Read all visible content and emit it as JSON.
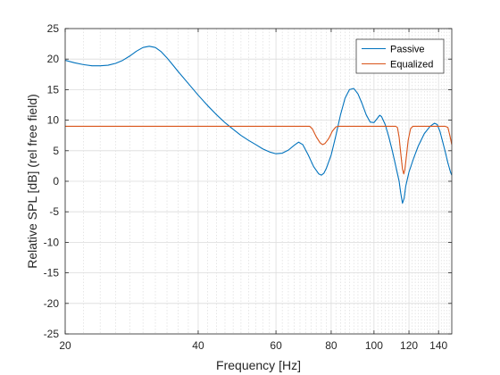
{
  "chart_data": {
    "type": "line",
    "xlabel": "Frequency [Hz]",
    "ylabel": "Relative SPL [dB] (rel free field)",
    "xscale": "log",
    "xlim": [
      20,
      150
    ],
    "ylim": [
      -25,
      25
    ],
    "xticks": [
      20,
      40,
      60,
      80,
      100,
      120,
      140
    ],
    "xtick_labels": [
      "20",
      "40",
      "60",
      "80",
      "100",
      "120",
      "140"
    ],
    "yticks": [
      -25,
      -20,
      -15,
      -10,
      -5,
      0,
      5,
      10,
      15,
      20,
      25
    ],
    "ytick_labels": [
      "-25",
      "-20",
      "-15",
      "-10",
      "-5",
      "0",
      "5",
      "10",
      "15",
      "20",
      "25"
    ],
    "grid": true,
    "minor_grid": true,
    "legend_position": "top-right",
    "series": [
      {
        "name": "Passive",
        "color": "#0072BD",
        "points": [
          [
            20,
            19.8
          ],
          [
            21,
            19.4
          ],
          [
            22,
            19.1
          ],
          [
            23,
            18.9
          ],
          [
            24,
            18.9
          ],
          [
            25,
            19.0
          ],
          [
            26,
            19.3
          ],
          [
            27,
            19.8
          ],
          [
            28,
            20.5
          ],
          [
            29,
            21.3
          ],
          [
            30,
            21.9
          ],
          [
            31,
            22.1
          ],
          [
            32,
            21.9
          ],
          [
            33,
            21.2
          ],
          [
            34,
            20.2
          ],
          [
            35,
            19.1
          ],
          [
            36,
            18.0
          ],
          [
            38,
            16.0
          ],
          [
            40,
            14.1
          ],
          [
            42,
            12.4
          ],
          [
            44,
            10.9
          ],
          [
            46,
            9.6
          ],
          [
            48,
            8.5
          ],
          [
            50,
            7.5
          ],
          [
            52,
            6.7
          ],
          [
            54,
            6.0
          ],
          [
            56,
            5.3
          ],
          [
            58,
            4.8
          ],
          [
            60,
            4.5
          ],
          [
            62,
            4.6
          ],
          [
            64,
            5.1
          ],
          [
            66,
            5.9
          ],
          [
            67.5,
            6.4
          ],
          [
            69,
            6.0
          ],
          [
            71,
            4.3
          ],
          [
            73,
            2.4
          ],
          [
            75,
            1.2
          ],
          [
            76,
            1.0
          ],
          [
            77,
            1.3
          ],
          [
            78,
            2.1
          ],
          [
            80,
            4.3
          ],
          [
            82,
            7.5
          ],
          [
            84,
            10.9
          ],
          [
            86,
            13.6
          ],
          [
            88,
            15.0
          ],
          [
            90,
            15.2
          ],
          [
            92,
            14.3
          ],
          [
            94,
            12.7
          ],
          [
            96,
            10.9
          ],
          [
            98,
            9.7
          ],
          [
            100,
            9.6
          ],
          [
            102,
            10.4
          ],
          [
            103,
            10.8
          ],
          [
            104,
            10.6
          ],
          [
            106,
            9.3
          ],
          [
            108,
            7.3
          ],
          [
            110,
            5.0
          ],
          [
            112,
            2.5
          ],
          [
            114,
            0.0
          ],
          [
            115,
            -2.0
          ],
          [
            116,
            -3.6
          ],
          [
            117,
            -2.8
          ],
          [
            118,
            -0.8
          ],
          [
            120,
            1.5
          ],
          [
            123,
            3.8
          ],
          [
            126,
            5.8
          ],
          [
            130,
            7.8
          ],
          [
            134,
            9.0
          ],
          [
            137,
            9.5
          ],
          [
            139,
            9.3
          ],
          [
            141,
            8.2
          ],
          [
            143,
            6.5
          ],
          [
            145,
            4.8
          ],
          [
            147,
            3.0
          ],
          [
            149,
            1.5
          ],
          [
            150,
            1.0
          ]
        ]
      },
      {
        "name": "Equalized",
        "color": "#D95319",
        "points": [
          [
            20,
            9.0
          ],
          [
            30,
            9.0
          ],
          [
            40,
            9.0
          ],
          [
            50,
            9.0
          ],
          [
            60,
            9.0
          ],
          [
            70,
            9.0
          ],
          [
            71.5,
            9.0
          ],
          [
            72.5,
            8.6
          ],
          [
            74,
            7.3
          ],
          [
            75.5,
            6.3
          ],
          [
            76.5,
            6.0
          ],
          [
            77.5,
            6.2
          ],
          [
            79,
            7.0
          ],
          [
            80.5,
            8.2
          ],
          [
            82,
            8.9
          ],
          [
            83,
            9.0
          ],
          [
            90,
            9.0
          ],
          [
            100,
            9.0
          ],
          [
            108,
            9.0
          ],
          [
            112,
            9.0
          ],
          [
            113,
            8.8
          ],
          [
            114,
            7.2
          ],
          [
            115,
            4.5
          ],
          [
            116,
            2.0
          ],
          [
            116.8,
            1.2
          ],
          [
            117.5,
            2.0
          ],
          [
            118.5,
            4.3
          ],
          [
            119.5,
            6.7
          ],
          [
            121,
            8.6
          ],
          [
            122.5,
            9.0
          ],
          [
            130,
            9.0
          ],
          [
            140,
            9.0
          ],
          [
            145,
            9.0
          ],
          [
            147,
            8.8
          ],
          [
            148.5,
            7.5
          ],
          [
            150,
            6.0
          ]
        ]
      }
    ]
  }
}
